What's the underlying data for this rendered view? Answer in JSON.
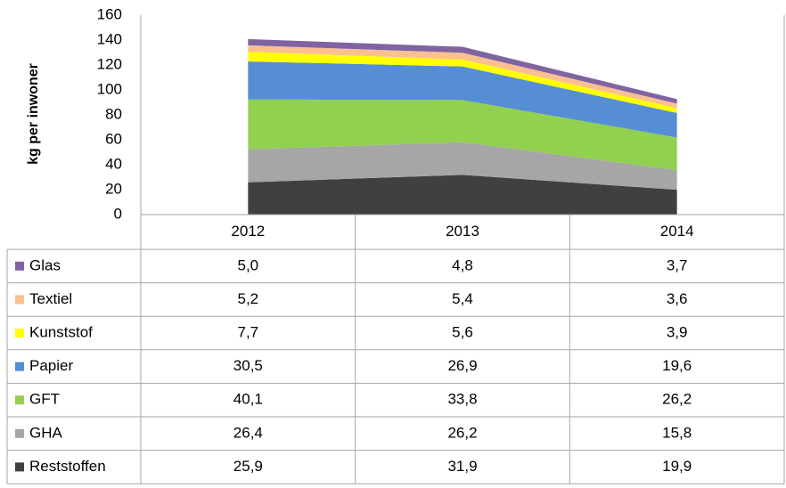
{
  "chart_data": {
    "type": "stacked_area",
    "y_label": "kg per inwoner",
    "categories": [
      "2012",
      "2013",
      "2014"
    ],
    "ylim": [
      0,
      160
    ],
    "yticks": [
      0,
      20,
      40,
      60,
      80,
      100,
      120,
      140,
      160
    ],
    "series": [
      {
        "name": "Reststoffen",
        "color": "#404040",
        "values": [
          25.9,
          31.9,
          19.9
        ],
        "value_labels": [
          "25,9",
          "31,9",
          "19,9"
        ]
      },
      {
        "name": "GHA",
        "color": "#a6a6a6",
        "values": [
          26.4,
          26.2,
          15.8
        ],
        "value_labels": [
          "26,4",
          "26,2",
          "15,8"
        ]
      },
      {
        "name": "GFT",
        "color": "#92d050",
        "values": [
          40.1,
          33.8,
          26.2
        ],
        "value_labels": [
          "40,1",
          "33,8",
          "26,2"
        ]
      },
      {
        "name": "Papier",
        "color": "#558ed5",
        "values": [
          30.5,
          26.9,
          19.6
        ],
        "value_labels": [
          "30,5",
          "26,9",
          "19,6"
        ]
      },
      {
        "name": "Kunststof",
        "color": "#ffff00",
        "values": [
          7.7,
          5.6,
          3.9
        ],
        "value_labels": [
          "7,7",
          "5,6",
          "3,9"
        ]
      },
      {
        "name": "Textiel",
        "color": "#fac090",
        "values": [
          5.2,
          5.4,
          3.6
        ],
        "value_labels": [
          "5,2",
          "5,4",
          "3,6"
        ]
      },
      {
        "name": "Glas",
        "color": "#8064a2",
        "values": [
          5.0,
          4.8,
          3.7
        ],
        "value_labels": [
          "5,0",
          "4,8",
          "3,7"
        ]
      }
    ]
  }
}
